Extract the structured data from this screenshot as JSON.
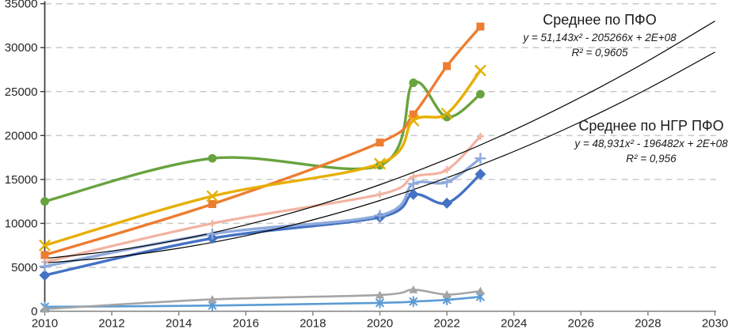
{
  "chart_data": {
    "type": "line",
    "title": "",
    "legend": "none",
    "grid": "horizontal-dashed",
    "x_axis": {
      "min": 2010,
      "max": 2030,
      "ticks": [
        2010,
        2012,
        2014,
        2016,
        2018,
        2020,
        2022,
        2024,
        2026,
        2028,
        2030
      ]
    },
    "y_axis": {
      "min": 0,
      "max": 35000,
      "step": 5000,
      "ticks": [
        0,
        5000,
        10000,
        15000,
        20000,
        25000,
        30000,
        35000
      ]
    },
    "x": [
      2010,
      2015,
      2020,
      2021,
      2022,
      2023
    ],
    "series": [
      {
        "name": "salmon-line",
        "color": "#F2B3A2",
        "marker": "plus",
        "marker_size": 3.5,
        "line_width": 3.2,
        "values": [
          5600,
          10000,
          13300,
          15300,
          16100,
          19900
        ]
      },
      {
        "name": "steelblue-asterisk",
        "color": "#5B9BD5",
        "marker": "asterisk",
        "marker_size": 6,
        "line_width": 2.6,
        "values": [
          500,
          650,
          950,
          1100,
          1300,
          1650
        ]
      },
      {
        "name": "gray-triangle",
        "color": "#A5A5A5",
        "marker": "triangle",
        "marker_size": 5.5,
        "line_width": 2.6,
        "values": [
          250,
          1350,
          1850,
          2450,
          1900,
          2300
        ]
      },
      {
        "name": "blue-diamond",
        "color": "#4472C4",
        "marker": "diamond",
        "marker_size": 6,
        "line_width": 3.4,
        "values": [
          4100,
          8300,
          10700,
          13300,
          12300,
          15600
        ]
      },
      {
        "name": "periwinkle-plus",
        "color": "#8FAADC",
        "marker": "plus",
        "marker_size": 6,
        "line_width": 3.4,
        "values": [
          5100,
          8800,
          10900,
          14500,
          14700,
          17400
        ]
      },
      {
        "name": "green-circle",
        "color": "#69A33E",
        "marker": "circle",
        "marker_size": 5.4,
        "line_width": 3.4,
        "values": [
          12500,
          17400,
          16600,
          26000,
          22100,
          24700
        ]
      },
      {
        "name": "orange-square",
        "color": "#ED7D31",
        "marker": "square",
        "marker_size": 5,
        "line_width": 3.4,
        "values": [
          6400,
          12200,
          19200,
          22400,
          27900,
          32400
        ]
      },
      {
        "name": "gold-x",
        "color": "#E7AF00",
        "marker": "x",
        "marker_size": 6,
        "line_width": 3.4,
        "values": [
          7500,
          13100,
          16800,
          21700,
          22500,
          27400
        ]
      }
    ],
    "trendlines": [
      {
        "name": "pfo",
        "label": "Среднее по ПФО",
        "equation": "y = 51,143x² - 205266x + 2E+08",
        "r2": "R² = 0,9605",
        "color": "#000000",
        "line_width": 1.2,
        "years": [
          2010,
          2012,
          2014,
          2016,
          2018,
          2020,
          2022,
          2024,
          2026,
          2028,
          2030
        ],
        "values": [
          6000,
          6860,
          8130,
          9820,
          11900,
          14400,
          17310,
          20630,
          24360,
          28490,
          33030
        ]
      },
      {
        "name": "ngr",
        "label": "Среднее по НГР ПФО",
        "equation": "y = 48,931x² - 196482x + 2E+08",
        "r2": "R² = 0,956",
        "color": "#000000",
        "line_width": 1.2,
        "years": [
          2010,
          2012,
          2014,
          2016,
          2018,
          2020,
          2022,
          2024,
          2026,
          2028,
          2030
        ],
        "values": [
          5500,
          6140,
          7170,
          8590,
          10400,
          12600,
          15190,
          18180,
          21560,
          25330,
          29490
        ]
      }
    ],
    "style": {
      "grid_color": "#C9C9C9",
      "y_axis_color": "#3A3A3A",
      "x_axis_color": "#7F7F7F",
      "label_color": "#262626",
      "label_font_px": 15
    }
  }
}
